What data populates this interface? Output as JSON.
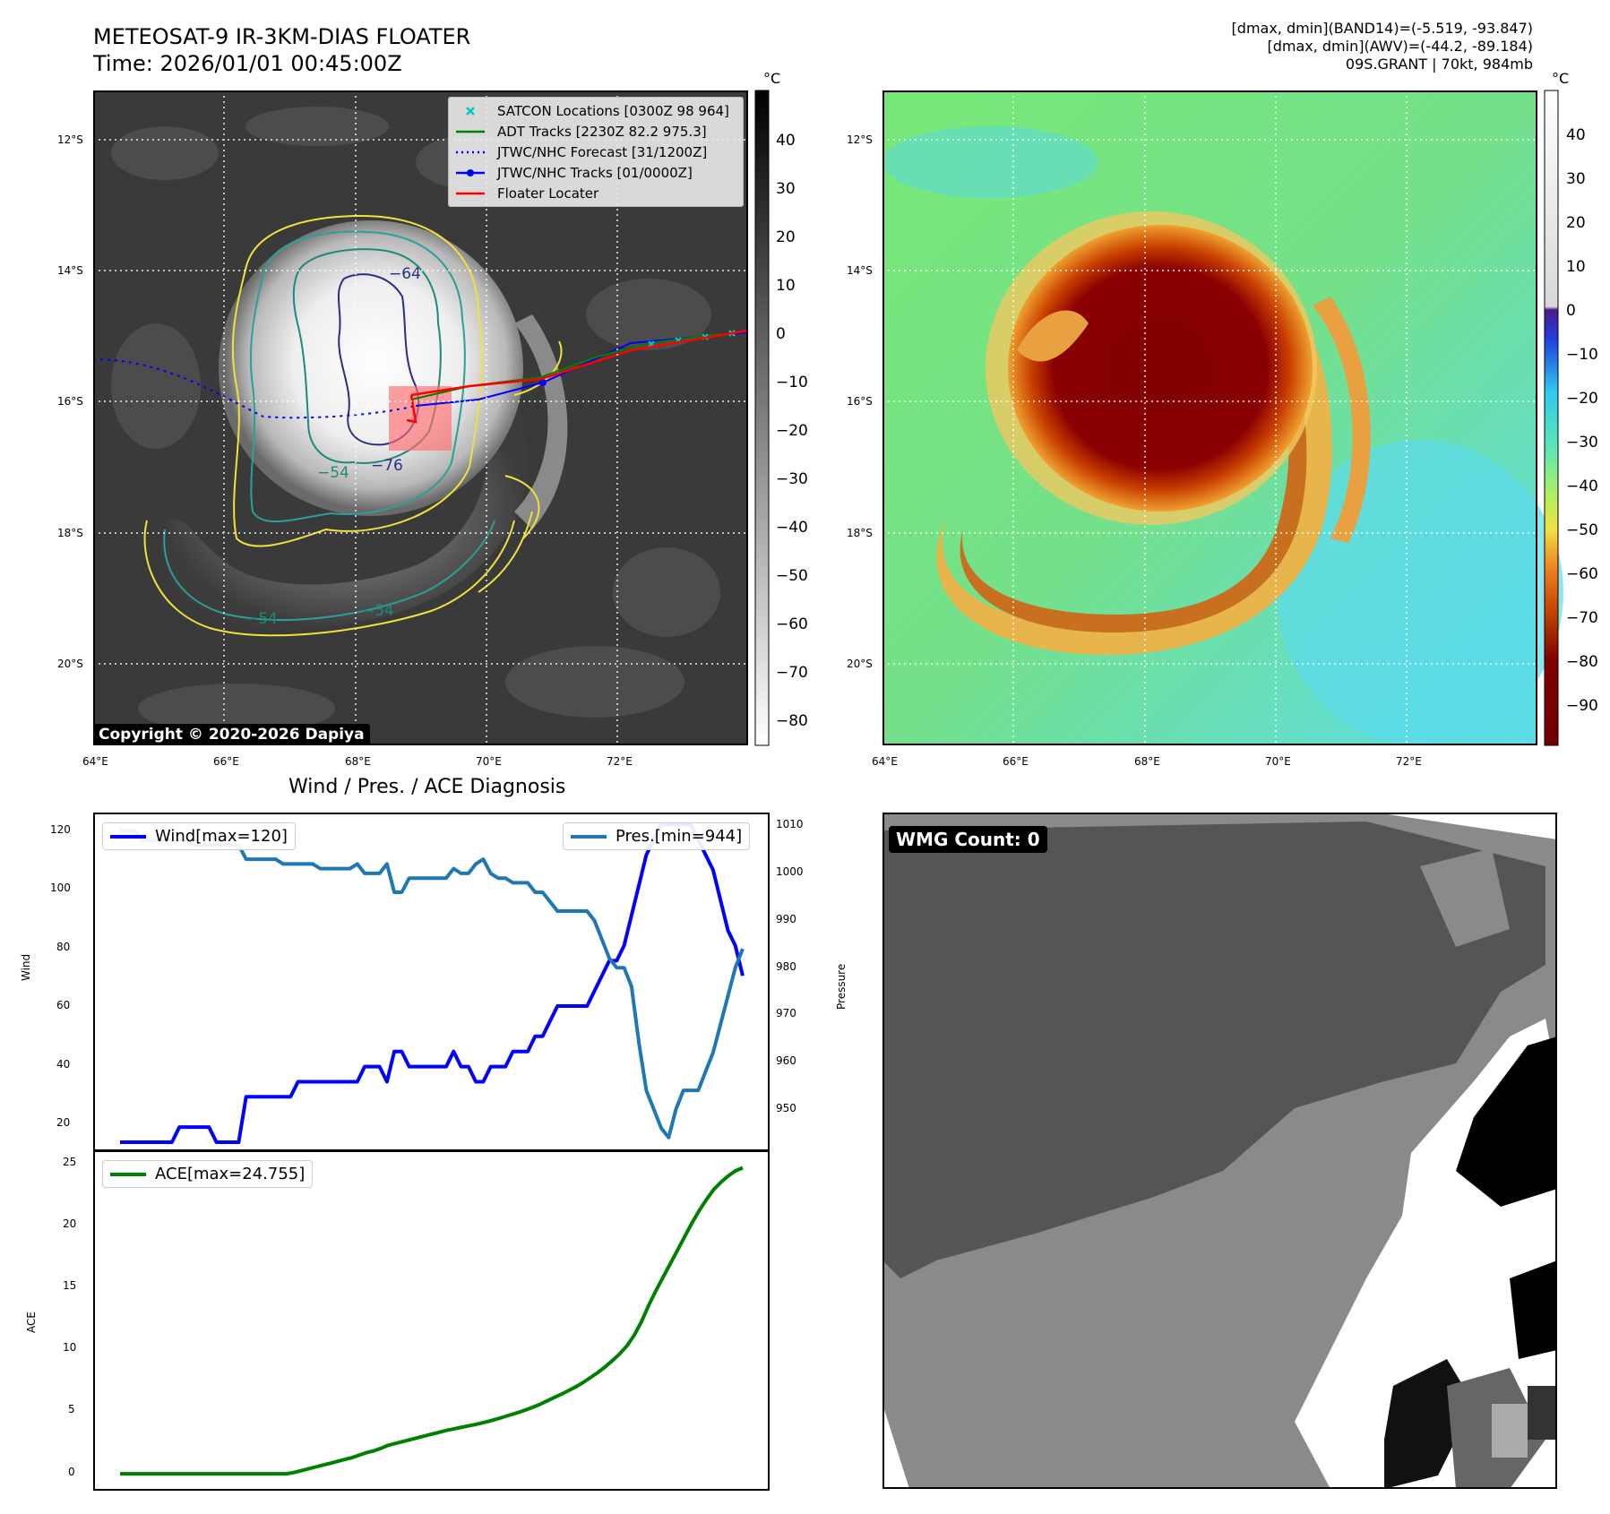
{
  "header": {
    "title_line1": "METEOSAT-9 IR-3KM-DIAS FLOATER",
    "title_line2": "Time: 2026/01/01 00:45:00Z",
    "meta_line1": "[dmax, dmin](BAND14)=(-5.519, -93.847)",
    "meta_line2": "[dmax, dmin](AWV)=(-44.2, -89.184)",
    "meta_line3": "09S.GRANT | 70kt, 984mb"
  },
  "ir_panel": {
    "lat_labels": [
      "12°S",
      "14°S",
      "16°S",
      "18°S",
      "20°S"
    ],
    "lon_labels": [
      "64°E",
      "66°E",
      "68°E",
      "70°E",
      "72°E"
    ],
    "colorbar_unit": "°C",
    "colorbar_ticks": [
      "40",
      "30",
      "20",
      "10",
      "0",
      "−10",
      "−20",
      "−30",
      "−40",
      "−50",
      "−60",
      "−70",
      "−80"
    ],
    "contour_labels": [
      "−64",
      "−76",
      "−54",
      "−54",
      "−54"
    ],
    "copyright": "Copyright © 2020-2026 Dapiya",
    "legend": [
      {
        "label": "SATCON Locations [0300Z 98 964]",
        "color": "#00c8c8",
        "style": "x"
      },
      {
        "label": "ADT Tracks [2230Z 82.2 975.3]",
        "color": "#008000",
        "style": "solid"
      },
      {
        "label": "JTWC/NHC Forecast [31/1200Z]",
        "color": "#0000ff",
        "style": "dotted"
      },
      {
        "label": "JTWC/NHC Tracks [01/0000Z]",
        "color": "#0000ff",
        "style": "marker"
      },
      {
        "label": "Floater Locater",
        "color": "#ff0000",
        "style": "solid"
      }
    ]
  },
  "awv_panel": {
    "lat_labels": [
      "12°S",
      "14°S",
      "16°S",
      "18°S",
      "20°S"
    ],
    "lon_labels": [
      "64°E",
      "66°E",
      "68°E",
      "70°E",
      "72°E"
    ],
    "colorbar_unit": "°C",
    "colorbar_ticks": [
      "40",
      "30",
      "20",
      "10",
      "0",
      "−10",
      "−20",
      "−30",
      "−40",
      "−50",
      "−60",
      "−70",
      "−80",
      "−90"
    ]
  },
  "diagnosis_panel": {
    "title": "Wind / Pres. / ACE Diagnosis",
    "wind_axis_label": "Wind",
    "pressure_axis_label": "Pressure",
    "ace_axis_label": "ACE",
    "wind_legend": "Wind[max=120]",
    "pres_legend": "Pres.[min=944]",
    "ace_legend": "ACE[max=24.755]",
    "wind_ticks": [
      "120",
      "100",
      "80",
      "60",
      "40",
      "20"
    ],
    "pres_ticks": [
      "1010",
      "1000",
      "990",
      "980",
      "970",
      "960",
      "950"
    ],
    "ace_ticks": [
      "25",
      "20",
      "15",
      "10",
      "5",
      "0"
    ]
  },
  "wmg_panel": {
    "label": "WMG Count: 0"
  },
  "chart_data": [
    {
      "type": "line",
      "title": "Wind / Pres. / ACE Diagnosis",
      "ylabel": "Wind",
      "y2label": "Pressure",
      "ylim": [
        15,
        121
      ],
      "y2lim": [
        943,
        1011
      ],
      "series": [
        {
          "name": "Wind[max=120]",
          "color": "#0000ff",
          "values": [
            15,
            15,
            15,
            15,
            15,
            15,
            15,
            15,
            20,
            20,
            20,
            20,
            20,
            15,
            15,
            15,
            15,
            30,
            30,
            30,
            30,
            30,
            30,
            30,
            35,
            35,
            35,
            35,
            35,
            35,
            35,
            35,
            35,
            40,
            40,
            40,
            35,
            45,
            45,
            40,
            40,
            40,
            40,
            40,
            40,
            45,
            40,
            40,
            35,
            35,
            40,
            40,
            40,
            45,
            45,
            45,
            50,
            50,
            55,
            60,
            60,
            60,
            60,
            60,
            65,
            70,
            75,
            75,
            80,
            90,
            100,
            110,
            115,
            120,
            120,
            120,
            120,
            120,
            115,
            110,
            105,
            95,
            85,
            80,
            70
          ]
        },
        {
          "name": "Pres.[min=944]",
          "color": "#1f77b4",
          "axis": "right",
          "values": [
            1009,
            1009,
            1009,
            1007,
            1007,
            1007,
            1007,
            1007,
            1007,
            1007,
            1006,
            1006,
            1006,
            1006,
            1006,
            1006,
            1006,
            1003,
            1003,
            1003,
            1003,
            1003,
            1002,
            1002,
            1002,
            1002,
            1002,
            1001,
            1001,
            1001,
            1001,
            1001,
            1002,
            1000,
            1000,
            1000,
            1002,
            996,
            996,
            999,
            999,
            999,
            999,
            999,
            999,
            1001,
            1000,
            1000,
            1002,
            1003,
            1000,
            999,
            999,
            998,
            998,
            998,
            996,
            996,
            994,
            992,
            992,
            992,
            992,
            992,
            990,
            986,
            982,
            980,
            980,
            976,
            964,
            954,
            950,
            946,
            944,
            950,
            954,
            954,
            954,
            958,
            962,
            968,
            974,
            980,
            984
          ]
        }
      ]
    },
    {
      "type": "line",
      "ylabel": "ACE",
      "ylim": [
        -0.5,
        25.3
      ],
      "series": [
        {
          "name": "ACE[max=24.755]",
          "color": "#008000",
          "values": [
            0,
            0,
            0,
            0,
            0,
            0,
            0,
            0,
            0,
            0,
            0,
            0,
            0,
            0,
            0,
            0,
            0,
            0,
            0,
            0,
            0,
            0,
            0,
            0,
            0.1,
            0.25,
            0.4,
            0.55,
            0.7,
            0.85,
            1.0,
            1.15,
            1.3,
            1.5,
            1.7,
            1.85,
            2.05,
            2.3,
            2.45,
            2.6,
            2.75,
            2.9,
            3.05,
            3.2,
            3.35,
            3.5,
            3.62,
            3.74,
            3.86,
            3.98,
            4.12,
            4.26,
            4.42,
            4.6,
            4.78,
            4.96,
            5.16,
            5.38,
            5.62,
            5.9,
            6.18,
            6.45,
            6.75,
            7.05,
            7.4,
            7.8,
            8.2,
            8.65,
            9.15,
            9.7,
            10.35,
            11.2,
            12.3,
            13.6,
            14.8,
            15.9,
            17.0,
            18.1,
            19.2,
            20.3,
            21.3,
            22.2,
            23.0,
            23.6,
            24.1,
            24.5,
            24.755
          ]
        }
      ]
    }
  ]
}
